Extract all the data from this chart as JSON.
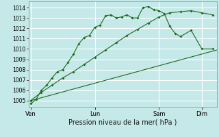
{
  "xlabel": "Pression niveau de la mer( hPa )",
  "bg_color": "#c5e8e8",
  "grid_color": "#ffffff",
  "line_color": "#1a6b1a",
  "ylim": [
    1004.4,
    1014.6
  ],
  "xlim": [
    -0.05,
    4.35
  ],
  "x_ticks_labels": [
    "Ven",
    "Lun",
    "Sam",
    "Dim"
  ],
  "x_ticks_pos": [
    0.0,
    1.5,
    3.0,
    4.0
  ],
  "yticks": [
    1005,
    1006,
    1007,
    1008,
    1009,
    1010,
    1011,
    1012,
    1013,
    1014
  ],
  "line1_x": [
    0.0,
    0.125,
    0.25,
    0.375,
    0.5,
    0.625,
    0.75,
    0.875,
    1.0,
    1.125,
    1.25,
    1.375,
    1.5,
    1.625,
    1.75,
    1.875,
    2.0,
    2.125,
    2.25,
    2.375,
    2.5,
    2.625,
    2.75,
    2.875,
    3.0,
    3.125,
    3.25,
    3.375,
    3.5,
    3.75,
    4.0,
    4.25
  ],
  "line1_y": [
    1004.7,
    1005.1,
    1006.0,
    1006.5,
    1007.2,
    1007.8,
    1008.0,
    1008.7,
    1009.5,
    1010.5,
    1011.1,
    1011.3,
    1012.1,
    1012.3,
    1013.2,
    1013.3,
    1013.0,
    1013.1,
    1013.3,
    1013.0,
    1013.0,
    1014.0,
    1014.1,
    1013.8,
    1013.7,
    1013.4,
    1012.2,
    1011.5,
    1011.2,
    1011.8,
    1010.0,
    1010.0
  ],
  "line2_x": [
    0.0,
    0.25,
    0.5,
    0.75,
    1.0,
    1.25,
    1.5,
    1.75,
    2.0,
    2.25,
    2.5,
    2.75,
    3.0,
    3.25,
    3.5,
    3.75,
    4.0,
    4.25
  ],
  "line2_y": [
    1005.0,
    1005.8,
    1006.5,
    1007.2,
    1007.8,
    1008.5,
    1009.2,
    1009.9,
    1010.6,
    1011.3,
    1011.9,
    1012.5,
    1013.1,
    1013.5,
    1013.6,
    1013.7,
    1013.5,
    1013.3
  ],
  "line3_x": [
    0.0,
    4.35
  ],
  "line3_y": [
    1005.0,
    1009.9
  ],
  "marker_size": 2.0
}
